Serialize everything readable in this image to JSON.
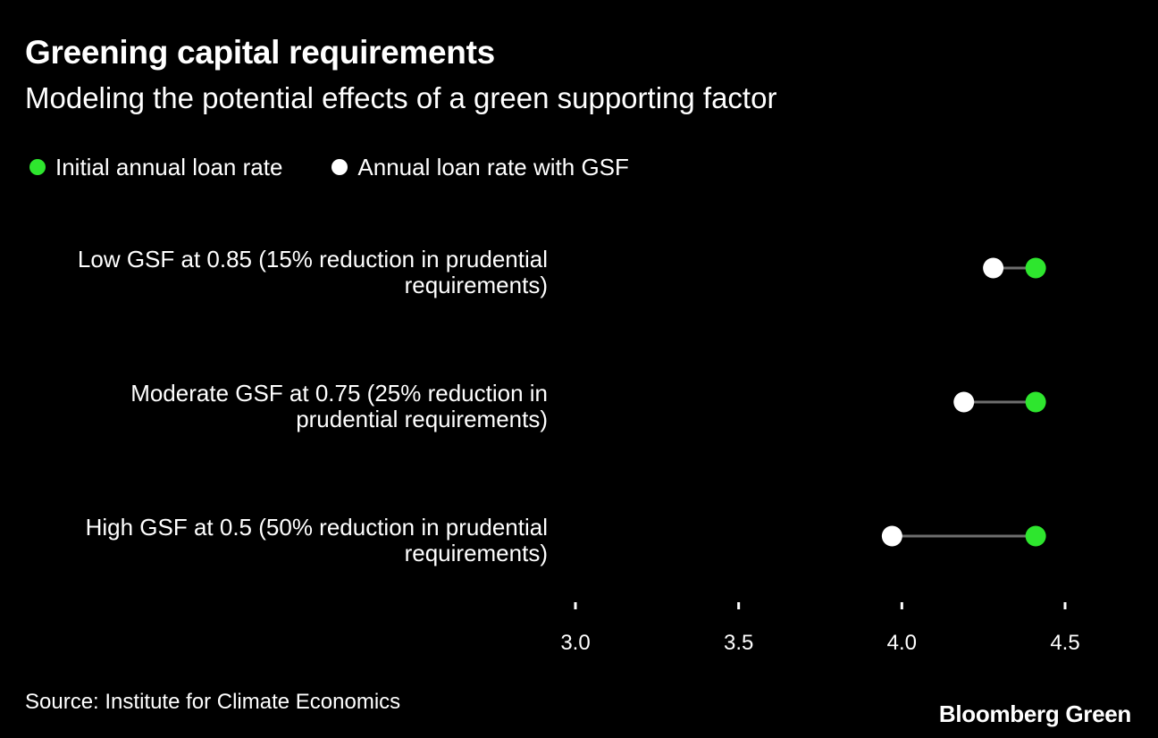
{
  "header": {
    "title": "Greening capital requirements",
    "subtitle": "Modeling the potential effects of a green supporting factor"
  },
  "legend": {
    "items": [
      {
        "label": "Initial annual loan rate",
        "color": "#2ee62e"
      },
      {
        "label": "Annual loan rate with GSF",
        "color": "#ffffff"
      }
    ]
  },
  "footer": {
    "source": "Source: Institute for Climate Economics",
    "brand": "Bloomberg Green"
  },
  "chart_data": {
    "type": "dot-range",
    "categories": [
      [
        "Low GSF at 0.85 (15% reduction in prudential",
        "requirements)"
      ],
      [
        "Moderate GSF at 0.75 (25% reduction in",
        "prudential requirements)"
      ],
      [
        "High GSF at 0.5 (50% reduction in prudential",
        "requirements)"
      ]
    ],
    "series": [
      {
        "name": "Initial annual loan rate",
        "color": "#2ee62e",
        "values": [
          4.41,
          4.41,
          4.41
        ]
      },
      {
        "name": "Annual loan rate with GSF",
        "color": "#ffffff",
        "values": [
          4.28,
          4.19,
          3.97
        ]
      }
    ],
    "connector_color": "#6e6e6e",
    "xlim": [
      3.0,
      4.5
    ],
    "xticks": [
      "3.0",
      "3.5",
      "4.0",
      "4.5"
    ],
    "grid": false
  }
}
